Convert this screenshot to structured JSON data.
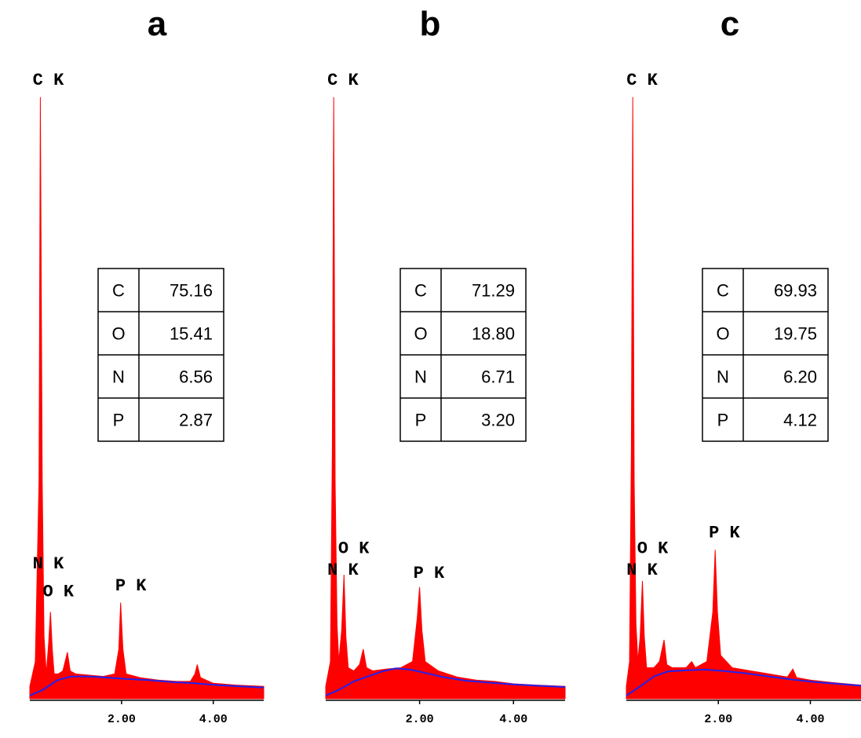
{
  "chart_data": [
    {
      "type": "area",
      "title": "a",
      "xlabel": "",
      "ylabel": "",
      "xlim": [
        0,
        5.1
      ],
      "ylim": [
        0,
        100
      ],
      "x_ticks": [
        "2.00",
        "4.00"
      ],
      "grid": false,
      "series": [
        {
          "color": "#ff0000",
          "points": [
            [
              0,
              2
            ],
            [
              0.12,
              6
            ],
            [
              0.2,
              35
            ],
            [
              0.23,
              97
            ],
            [
              0.27,
              35
            ],
            [
              0.31,
              10
            ],
            [
              0.36,
              4
            ],
            [
              0.41,
              9
            ],
            [
              0.45,
              14
            ],
            [
              0.49,
              8
            ],
            [
              0.53,
              4
            ],
            [
              0.62,
              4
            ],
            [
              0.72,
              4.5
            ],
            [
              0.82,
              7.5
            ],
            [
              0.88,
              4.5
            ],
            [
              1.0,
              4
            ],
            [
              1.3,
              3.8
            ],
            [
              1.6,
              3.6
            ],
            [
              1.85,
              4
            ],
            [
              1.94,
              8
            ],
            [
              1.98,
              15.5
            ],
            [
              2.03,
              8
            ],
            [
              2.1,
              4
            ],
            [
              2.4,
              3.4
            ],
            [
              2.8,
              3
            ],
            [
              3.2,
              2.8
            ],
            [
              3.5,
              2.8
            ],
            [
              3.6,
              4
            ],
            [
              3.65,
              5.5
            ],
            [
              3.72,
              3.4
            ],
            [
              4.0,
              2.5
            ],
            [
              4.5,
              2.2
            ],
            [
              5.1,
              2
            ]
          ]
        },
        {
          "color": "#2222ee",
          "points": [
            [
              0,
              0.5
            ],
            [
              0.3,
              1.5
            ],
            [
              0.6,
              3
            ],
            [
              0.9,
              3.6
            ],
            [
              1.3,
              3.6
            ],
            [
              1.7,
              3.4
            ],
            [
              2.1,
              3.2
            ],
            [
              2.6,
              3.0
            ],
            [
              3.1,
              2.7
            ],
            [
              3.6,
              2.5
            ],
            [
              4.1,
              2.2
            ],
            [
              4.6,
              2.0
            ],
            [
              5.1,
              1.8
            ]
          ]
        }
      ],
      "annotations": [
        {
          "text": "C K",
          "x": 0.2,
          "y": 99
        },
        {
          "text": "N K",
          "x": 0.2,
          "y": 21
        },
        {
          "text": "O K",
          "x": 0.42,
          "y": 16.5
        },
        {
          "text": "P K",
          "x": 2.0,
          "y": 17.5
        }
      ],
      "table": [
        {
          "element": "C",
          "value": "75.16"
        },
        {
          "element": "O",
          "value": "15.41"
        },
        {
          "element": "N",
          "value": "6.56"
        },
        {
          "element": "P",
          "value": "2.87"
        }
      ]
    },
    {
      "type": "area",
      "title": "b",
      "xlabel": "",
      "ylabel": "",
      "xlim": [
        0,
        5.1
      ],
      "ylim": [
        0,
        100
      ],
      "x_ticks": [
        "2.00",
        "4.00"
      ],
      "grid": false,
      "series": [
        {
          "color": "#ff0000",
          "points": [
            [
              0,
              2
            ],
            [
              0.1,
              6
            ],
            [
              0.14,
              40
            ],
            [
              0.17,
              97
            ],
            [
              0.2,
              35
            ],
            [
              0.24,
              12
            ],
            [
              0.28,
              6
            ],
            [
              0.34,
              11
            ],
            [
              0.39,
              20
            ],
            [
              0.43,
              10
            ],
            [
              0.48,
              5
            ],
            [
              0.6,
              4.5
            ],
            [
              0.72,
              5.5
            ],
            [
              0.8,
              8
            ],
            [
              0.87,
              5
            ],
            [
              1.0,
              4.5
            ],
            [
              1.3,
              4.8
            ],
            [
              1.6,
              5
            ],
            [
              1.85,
              6
            ],
            [
              1.95,
              13
            ],
            [
              2.0,
              18
            ],
            [
              2.05,
              11
            ],
            [
              2.12,
              6
            ],
            [
              2.4,
              4.5
            ],
            [
              2.8,
              3.5
            ],
            [
              3.2,
              3
            ],
            [
              3.6,
              2.8
            ],
            [
              4.0,
              2.4
            ],
            [
              4.5,
              2.2
            ],
            [
              5.1,
              2
            ]
          ]
        },
        {
          "color": "#2222ee",
          "points": [
            [
              0,
              0.5
            ],
            [
              0.3,
              1.5
            ],
            [
              0.6,
              2.8
            ],
            [
              0.9,
              3.6
            ],
            [
              1.2,
              4.4
            ],
            [
              1.5,
              4.9
            ],
            [
              1.8,
              4.7
            ],
            [
              2.1,
              4.2
            ],
            [
              2.5,
              3.5
            ],
            [
              3.0,
              2.9
            ],
            [
              3.5,
              2.6
            ],
            [
              4.0,
              2.3
            ],
            [
              4.5,
              2.1
            ],
            [
              5.1,
              1.9
            ]
          ]
        }
      ],
      "annotations": [
        {
          "text": "C K",
          "x": 0.17,
          "y": 99
        },
        {
          "text": "O K",
          "x": 0.4,
          "y": 23.5
        },
        {
          "text": "N K",
          "x": 0.17,
          "y": 20
        },
        {
          "text": "P K",
          "x": 2.0,
          "y": 19.5
        }
      ],
      "table": [
        {
          "element": "C",
          "value": "71.29"
        },
        {
          "element": "O",
          "value": "18.80"
        },
        {
          "element": "N",
          "value": "6.71"
        },
        {
          "element": "P",
          "value": "3.20"
        }
      ]
    },
    {
      "type": "area",
      "title": "c",
      "xlabel": "",
      "ylabel": "",
      "xlim": [
        0,
        5.1
      ],
      "ylim": [
        0,
        100
      ],
      "x_ticks": [
        "2.00",
        "4.00"
      ],
      "grid": false,
      "series": [
        {
          "color": "#ff0000",
          "points": [
            [
              0,
              2
            ],
            [
              0.07,
              6
            ],
            [
              0.11,
              40
            ],
            [
              0.14,
              97
            ],
            [
              0.17,
              35
            ],
            [
              0.21,
              12
            ],
            [
              0.25,
              6
            ],
            [
              0.3,
              10
            ],
            [
              0.35,
              19
            ],
            [
              0.39,
              10
            ],
            [
              0.44,
              5
            ],
            [
              0.6,
              5
            ],
            [
              0.72,
              6
            ],
            [
              0.82,
              9.5
            ],
            [
              0.88,
              5.5
            ],
            [
              1.0,
              5
            ],
            [
              1.3,
              5
            ],
            [
              1.42,
              6
            ],
            [
              1.5,
              5
            ],
            [
              1.75,
              6
            ],
            [
              1.88,
              14
            ],
            [
              1.93,
              24
            ],
            [
              1.98,
              14
            ],
            [
              2.05,
              7
            ],
            [
              2.3,
              5
            ],
            [
              2.7,
              4.5
            ],
            [
              3.1,
              4
            ],
            [
              3.5,
              3.5
            ],
            [
              3.62,
              4.8
            ],
            [
              3.7,
              3.4
            ],
            [
              4.0,
              3
            ],
            [
              4.5,
              2.6
            ],
            [
              5.1,
              2.2
            ]
          ]
        },
        {
          "color": "#2222ee",
          "points": [
            [
              0,
              0.5
            ],
            [
              0.3,
              2
            ],
            [
              0.6,
              3.6
            ],
            [
              0.9,
              4.4
            ],
            [
              1.3,
              4.6
            ],
            [
              1.7,
              4.7
            ],
            [
              2.1,
              4.5
            ],
            [
              2.6,
              4.1
            ],
            [
              3.1,
              3.6
            ],
            [
              3.6,
              3.1
            ],
            [
              4.1,
              2.7
            ],
            [
              4.6,
              2.4
            ],
            [
              5.1,
              2.1
            ]
          ]
        }
      ],
      "annotations": [
        {
          "text": "C K",
          "x": 0.14,
          "y": 99
        },
        {
          "text": "O K",
          "x": 0.37,
          "y": 23.5
        },
        {
          "text": "N K",
          "x": 0.14,
          "y": 20
        },
        {
          "text": "P K",
          "x": 1.93,
          "y": 26
        }
      ],
      "table": [
        {
          "element": "C",
          "value": "69.93"
        },
        {
          "element": "O",
          "value": "19.75"
        },
        {
          "element": "N",
          "value": "6.20"
        },
        {
          "element": "P",
          "value": "4.12"
        }
      ]
    }
  ]
}
